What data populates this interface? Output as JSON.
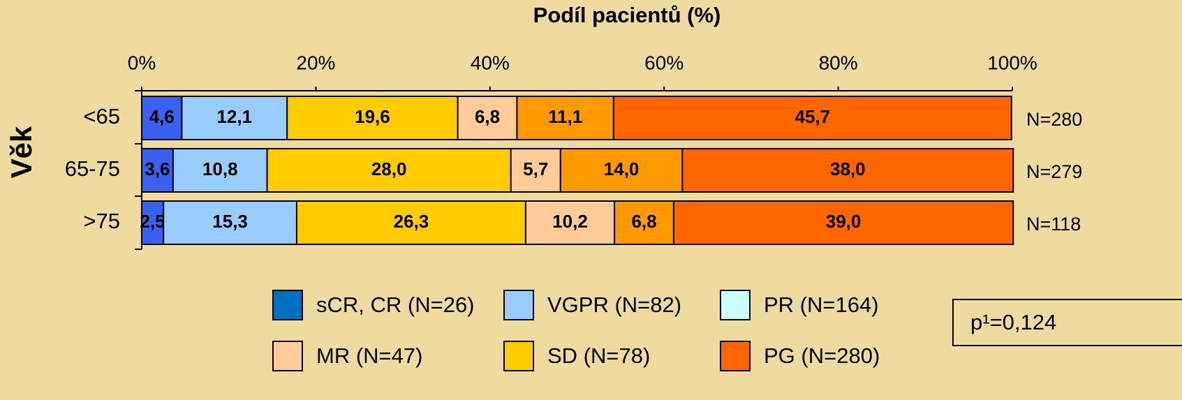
{
  "chart_data": {
    "type": "stacked_barh",
    "title": "Podíl pacientů (%)",
    "y_label": "Věk",
    "categories": [
      "<65",
      "65-75",
      ">75"
    ],
    "xlim": [
      0,
      100
    ],
    "xticks": [
      {
        "value": 0,
        "label": "0%"
      },
      {
        "value": 20,
        "label": "20%"
      },
      {
        "value": 40,
        "label": "40%"
      },
      {
        "value": 60,
        "label": "60%"
      },
      {
        "value": 80,
        "label": "80%"
      },
      {
        "value": 100,
        "label": "100%"
      }
    ],
    "series": [
      {
        "color": "#3a60f0",
        "values": [
          4.6,
          3.6,
          2.5
        ],
        "value_labels": [
          "4,6",
          "3,6",
          "2,5"
        ]
      },
      {
        "color": "#99ccff",
        "values": [
          12.1,
          10.8,
          15.3
        ],
        "value_labels": [
          "12,1",
          "10,8",
          "15,3"
        ]
      },
      {
        "color": "#ffcc00",
        "values": [
          19.6,
          28.0,
          26.3
        ],
        "value_labels": [
          "19,6",
          "28,0",
          "26,3"
        ]
      },
      {
        "color": "#ffcc99",
        "values": [
          6.8,
          5.7,
          10.2
        ],
        "value_labels": [
          "6,8",
          "5,7",
          "10,2"
        ]
      },
      {
        "color": "#ff9900",
        "values": [
          11.1,
          14.0,
          6.8
        ],
        "value_labels": [
          "11,1",
          "14,0",
          "6,8"
        ]
      },
      {
        "color": "#ff6600",
        "values": [
          45.7,
          38.0,
          39.0
        ],
        "value_labels": [
          "45,7",
          "38,0",
          "39,0"
        ]
      }
    ],
    "row_annotations": [
      "N=280",
      "N=279",
      "N=118"
    ],
    "legend": [
      {
        "label": "sCR, CR (N=26)",
        "color": "#0070c0"
      },
      {
        "label": "VGPR (N=82)",
        "color": "#99ccff"
      },
      {
        "label": "PR (N=164)",
        "color": "#ccffff"
      },
      {
        "label": "MR (N=47)",
        "color": "#ffcc99"
      },
      {
        "label": "SD (N=78)",
        "color": "#ffcc00"
      },
      {
        "label": "PG (N=280)",
        "color": "#ff6600"
      }
    ],
    "p_value": "p¹=0,124"
  }
}
